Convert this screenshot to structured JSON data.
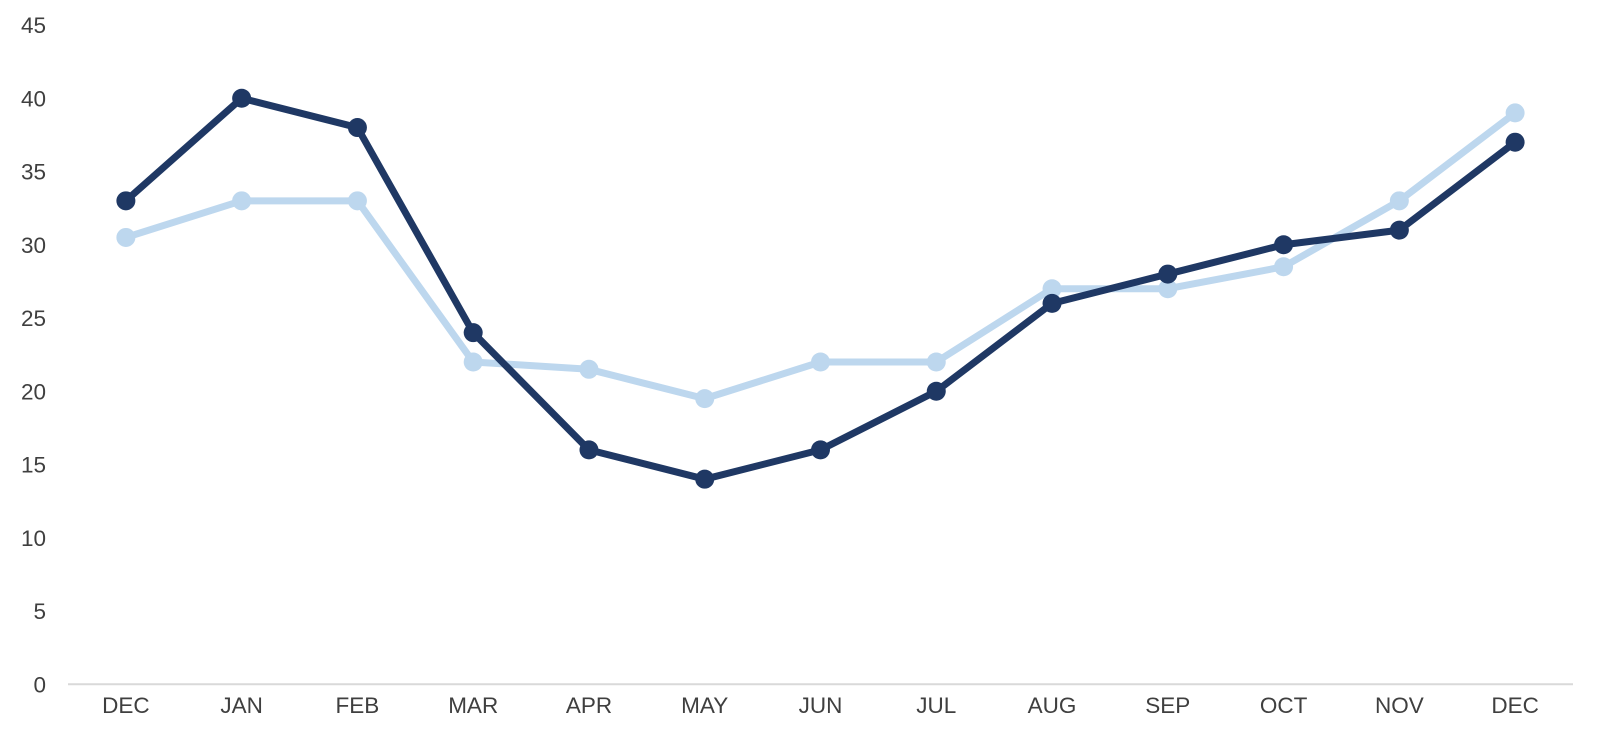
{
  "chart_data": {
    "type": "line",
    "title": "",
    "xlabel": "",
    "ylabel": "",
    "categories": [
      "DEC",
      "JAN",
      "FEB",
      "MAR",
      "APR",
      "MAY",
      "JUN",
      "JUL",
      "AUG",
      "SEP",
      "OCT",
      "NOV",
      "DEC"
    ],
    "series": [
      {
        "name": "light-blue-series",
        "color": "#BDD7EE",
        "values": [
          30.5,
          33,
          33,
          22,
          21.5,
          19.5,
          22,
          22,
          27,
          27,
          28.5,
          33,
          39
        ]
      },
      {
        "name": "dark-navy-series",
        "color": "#1F3864",
        "values": [
          33,
          40,
          38,
          24,
          16,
          14,
          16,
          20,
          26,
          28,
          30,
          31,
          37
        ]
      }
    ],
    "ylim": [
      0,
      45
    ],
    "y_ticks": [
      "0",
      "5",
      "10",
      "15",
      "20",
      "25",
      "30",
      "35",
      "40",
      "45"
    ],
    "grid": false,
    "legend": false,
    "marker": "circle",
    "colors": {
      "axis_line": "#D9D9D9",
      "tick_label": "#3F3F3F",
      "background": "#FFFFFF"
    }
  }
}
